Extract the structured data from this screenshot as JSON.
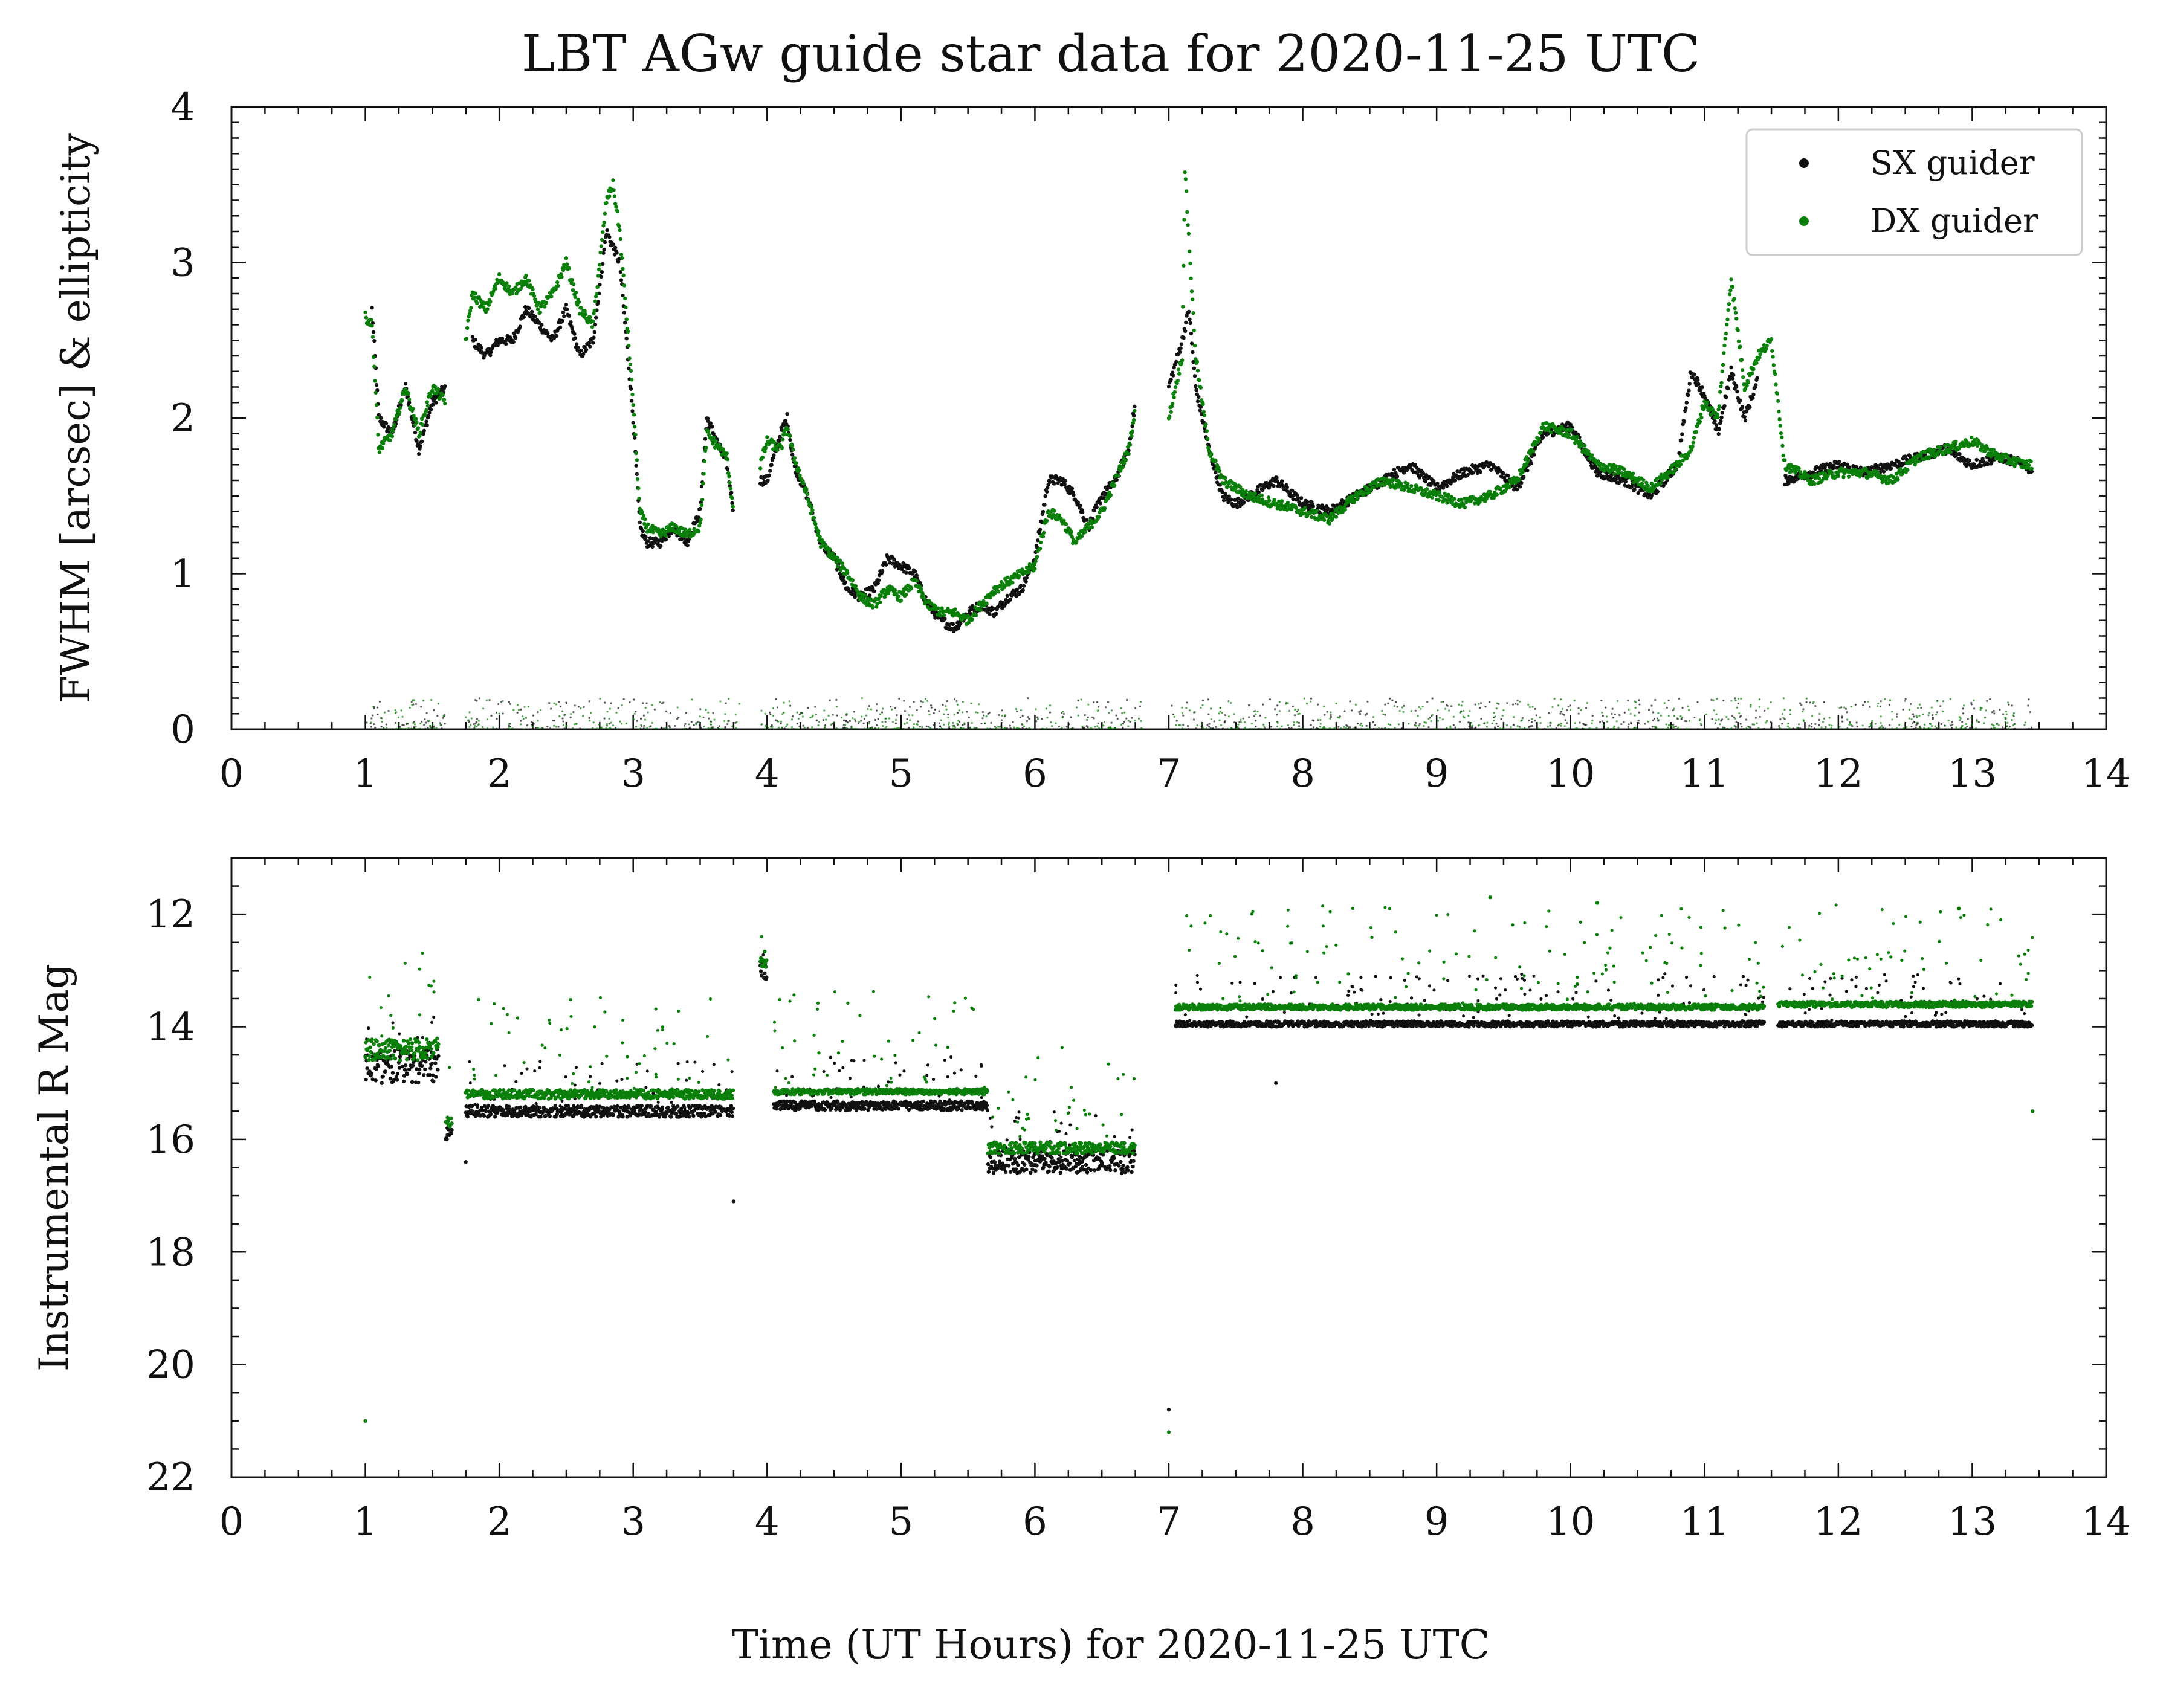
{
  "figure": {
    "title": "LBT AGw guide star data for 2020-11-25 UTC",
    "xlabel": "Time (UT Hours) for 2020-11-25 UTC"
  },
  "colors": {
    "sx": "#111111",
    "dx": "#0a7f0a"
  },
  "legend": {
    "position": "top-right",
    "entries": [
      "SX guider",
      "DX guider"
    ]
  },
  "chart_data": [
    {
      "type": "scatter",
      "panel": "top",
      "ylabel": "FWHM [arcsec] & ellipticity",
      "xlim": [
        0,
        14
      ],
      "ylim": [
        0,
        4
      ],
      "x_ticks": [
        0,
        1,
        2,
        3,
        4,
        5,
        6,
        7,
        8,
        9,
        10,
        11,
        12,
        13,
        14
      ],
      "y_ticks": [
        0,
        1,
        2,
        3,
        4
      ],
      "grid": false,
      "gaps": [
        [
          1.6,
          1.75
        ],
        [
          3.8,
          3.95
        ],
        [
          6.8,
          7.0
        ],
        [
          11.5,
          11.55
        ]
      ],
      "series": [
        {
          "name": "SX guider",
          "color": "#111111",
          "metric": "FWHM",
          "x": [
            1.05,
            1.1,
            1.2,
            1.3,
            1.4,
            1.5,
            1.6,
            1.8,
            1.9,
            2.0,
            2.1,
            2.2,
            2.3,
            2.4,
            2.5,
            2.6,
            2.7,
            2.8,
            2.85,
            2.9,
            3.0,
            3.05,
            3.1,
            3.2,
            3.3,
            3.4,
            3.5,
            3.55,
            3.6,
            3.7,
            3.75,
            3.95,
            4.0,
            4.1,
            4.15,
            4.2,
            4.3,
            4.4,
            4.5,
            4.6,
            4.7,
            4.8,
            4.9,
            5.0,
            5.1,
            5.2,
            5.3,
            5.4,
            5.5,
            5.6,
            5.7,
            5.8,
            5.9,
            6.0,
            6.1,
            6.2,
            6.3,
            6.4,
            6.5,
            6.6,
            6.7,
            6.75,
            7.0,
            7.1,
            7.15,
            7.2,
            7.3,
            7.4,
            7.5,
            7.6,
            7.8,
            8.0,
            8.2,
            8.4,
            8.6,
            8.8,
            9.0,
            9.2,
            9.4,
            9.6,
            9.8,
            10.0,
            10.2,
            10.4,
            10.6,
            10.8,
            10.9,
            11.0,
            11.1,
            11.2,
            11.3,
            11.4,
            11.6,
            11.8,
            12.0,
            12.2,
            12.4,
            12.6,
            12.8,
            13.0,
            13.2,
            13.4,
            13.45
          ],
          "y": [
            2.7,
            2.0,
            1.9,
            2.2,
            1.8,
            2.1,
            2.2,
            2.5,
            2.4,
            2.5,
            2.5,
            2.7,
            2.6,
            2.5,
            2.7,
            2.4,
            2.5,
            3.2,
            3.1,
            3.0,
            2.0,
            1.3,
            1.2,
            1.2,
            1.3,
            1.2,
            1.4,
            2.0,
            1.9,
            1.7,
            1.4,
            1.6,
            1.6,
            1.9,
            2.0,
            1.7,
            1.5,
            1.2,
            1.1,
            0.9,
            0.85,
            0.9,
            1.1,
            1.05,
            1.0,
            0.8,
            0.7,
            0.65,
            0.75,
            0.8,
            0.75,
            0.85,
            0.9,
            1.1,
            1.6,
            1.6,
            1.5,
            1.3,
            1.5,
            1.6,
            1.8,
            2.1,
            2.2,
            2.5,
            2.7,
            2.2,
            1.8,
            1.5,
            1.45,
            1.5,
            1.6,
            1.45,
            1.4,
            1.5,
            1.6,
            1.7,
            1.55,
            1.65,
            1.7,
            1.55,
            1.9,
            1.95,
            1.65,
            1.6,
            1.5,
            1.7,
            2.3,
            2.15,
            1.9,
            2.3,
            2.0,
            2.25,
            1.6,
            1.65,
            1.7,
            1.65,
            1.7,
            1.75,
            1.8,
            1.7,
            1.75,
            1.7,
            1.65
          ]
        },
        {
          "name": "DX guider",
          "color": "#0a7f0a",
          "metric": "FWHM",
          "x": [
            1.0,
            1.05,
            1.1,
            1.2,
            1.3,
            1.4,
            1.5,
            1.6,
            1.75,
            1.8,
            1.9,
            2.0,
            2.1,
            2.2,
            2.3,
            2.4,
            2.5,
            2.6,
            2.7,
            2.8,
            2.85,
            2.9,
            3.0,
            3.05,
            3.1,
            3.2,
            3.3,
            3.4,
            3.5,
            3.55,
            3.6,
            3.7,
            3.75,
            3.95,
            4.0,
            4.1,
            4.15,
            4.2,
            4.3,
            4.4,
            4.5,
            4.6,
            4.7,
            4.8,
            4.9,
            5.0,
            5.1,
            5.2,
            5.3,
            5.4,
            5.5,
            5.6,
            5.7,
            5.8,
            5.9,
            6.0,
            6.1,
            6.2,
            6.3,
            6.4,
            6.5,
            6.6,
            6.7,
            6.75,
            7.0,
            7.1,
            7.12,
            7.2,
            7.3,
            7.4,
            7.5,
            7.6,
            7.8,
            8.0,
            8.2,
            8.4,
            8.6,
            8.8,
            9.0,
            9.2,
            9.4,
            9.6,
            9.8,
            10.0,
            10.2,
            10.4,
            10.6,
            10.8,
            10.9,
            11.0,
            11.1,
            11.2,
            11.3,
            11.4,
            11.5,
            11.6,
            11.8,
            12.0,
            12.2,
            12.4,
            12.6,
            12.8,
            13.0,
            13.2,
            13.4,
            13.45
          ],
          "y": [
            2.65,
            2.6,
            1.8,
            1.9,
            2.2,
            1.9,
            2.2,
            2.1,
            2.5,
            2.8,
            2.7,
            2.9,
            2.8,
            2.9,
            2.7,
            2.8,
            3.0,
            2.7,
            2.6,
            3.4,
            3.5,
            3.2,
            2.1,
            1.4,
            1.3,
            1.25,
            1.3,
            1.25,
            1.3,
            1.9,
            1.85,
            1.75,
            1.4,
            1.7,
            1.85,
            1.8,
            1.95,
            1.75,
            1.5,
            1.2,
            1.1,
            1.0,
            0.85,
            0.8,
            0.9,
            0.85,
            0.95,
            0.8,
            0.75,
            0.75,
            0.7,
            0.8,
            0.9,
            0.95,
            1.0,
            1.05,
            1.4,
            1.35,
            1.2,
            1.3,
            1.4,
            1.6,
            1.8,
            2.05,
            2.0,
            2.4,
            3.6,
            2.4,
            1.8,
            1.6,
            1.55,
            1.5,
            1.45,
            1.4,
            1.35,
            1.5,
            1.6,
            1.55,
            1.5,
            1.45,
            1.5,
            1.6,
            1.95,
            1.9,
            1.7,
            1.65,
            1.55,
            1.7,
            1.8,
            2.1,
            2.0,
            2.9,
            2.2,
            2.4,
            2.5,
            1.7,
            1.6,
            1.65,
            1.65,
            1.6,
            1.75,
            1.8,
            1.85,
            1.75,
            1.7,
            1.7
          ]
        },
        {
          "name": "SX guider",
          "color": "#111111",
          "metric": "ellipticity",
          "x_range": [
            1.0,
            13.45
          ],
          "y_range": [
            0.0,
            0.2
          ],
          "note_values": [
            0.05,
            0.08,
            0.1,
            0.12,
            0.15
          ]
        },
        {
          "name": "DX guider",
          "color": "#0a7f0a",
          "metric": "ellipticity",
          "x_range": [
            1.0,
            13.45
          ],
          "y_range": [
            0.0,
            0.2
          ],
          "note_values": [
            0.04,
            0.06,
            0.08,
            0.1,
            0.12
          ]
        }
      ]
    },
    {
      "type": "scatter",
      "panel": "bottom",
      "ylabel": "Instrumental R Mag",
      "xlim": [
        0,
        14
      ],
      "ylim": [
        22,
        11
      ],
      "y_inverted": true,
      "x_ticks": [
        0,
        1,
        2,
        3,
        4,
        5,
        6,
        7,
        8,
        9,
        10,
        11,
        12,
        13,
        14
      ],
      "y_ticks": [
        12,
        14,
        16,
        18,
        20,
        22
      ],
      "grid": false,
      "series": [
        {
          "name": "SX guider",
          "color": "#111111",
          "segments": [
            {
              "x": [
                1.0,
                1.55
              ],
              "level": 14.7,
              "scatter": 0.3
            },
            {
              "x": [
                1.6,
                1.65
              ],
              "level": 15.9,
              "scatter": 0.1
            },
            {
              "x": [
                1.75,
                3.75
              ],
              "level": 15.5,
              "scatter": 0.1
            },
            {
              "x": [
                3.95,
                4.0
              ],
              "level": 13.0,
              "scatter": 0.2
            },
            {
              "x": [
                4.05,
                5.65
              ],
              "level": 15.4,
              "scatter": 0.08
            },
            {
              "x": [
                5.65,
                6.75
              ],
              "level": 16.4,
              "scatter": 0.2
            },
            {
              "x": [
                7.05,
                11.45
              ],
              "level": 13.95,
              "scatter": 0.05
            },
            {
              "x": [
                11.55,
                13.45
              ],
              "level": 13.95,
              "scatter": 0.05
            }
          ],
          "outliers": [
            [
              3.75,
              17.1
            ],
            [
              7.0,
              20.8
            ],
            [
              7.8,
              15.0
            ],
            [
              1.75,
              16.4
            ]
          ]
        },
        {
          "name": "DX guider",
          "color": "#0a7f0a",
          "segments": [
            {
              "x": [
                1.0,
                1.55
              ],
              "level": 14.4,
              "scatter": 0.2
            },
            {
              "x": [
                1.6,
                1.65
              ],
              "level": 15.7,
              "scatter": 0.1
            },
            {
              "x": [
                1.75,
                3.75
              ],
              "level": 15.2,
              "scatter": 0.08
            },
            {
              "x": [
                3.95,
                4.0
              ],
              "level": 12.8,
              "scatter": 0.2
            },
            {
              "x": [
                4.05,
                5.65
              ],
              "level": 15.15,
              "scatter": 0.05
            },
            {
              "x": [
                5.65,
                6.75
              ],
              "level": 16.15,
              "scatter": 0.1
            },
            {
              "x": [
                7.05,
                11.45
              ],
              "level": 13.65,
              "scatter": 0.05
            },
            {
              "x": [
                11.55,
                13.45
              ],
              "level": 13.6,
              "scatter": 0.05
            }
          ],
          "outliers": [
            [
              1.0,
              21.0
            ],
            [
              7.0,
              21.2
            ],
            [
              13.45,
              15.5
            ],
            [
              9.4,
              11.7
            ],
            [
              10.2,
              11.8
            ],
            [
              12.9,
              11.9
            ]
          ]
        }
      ]
    }
  ]
}
